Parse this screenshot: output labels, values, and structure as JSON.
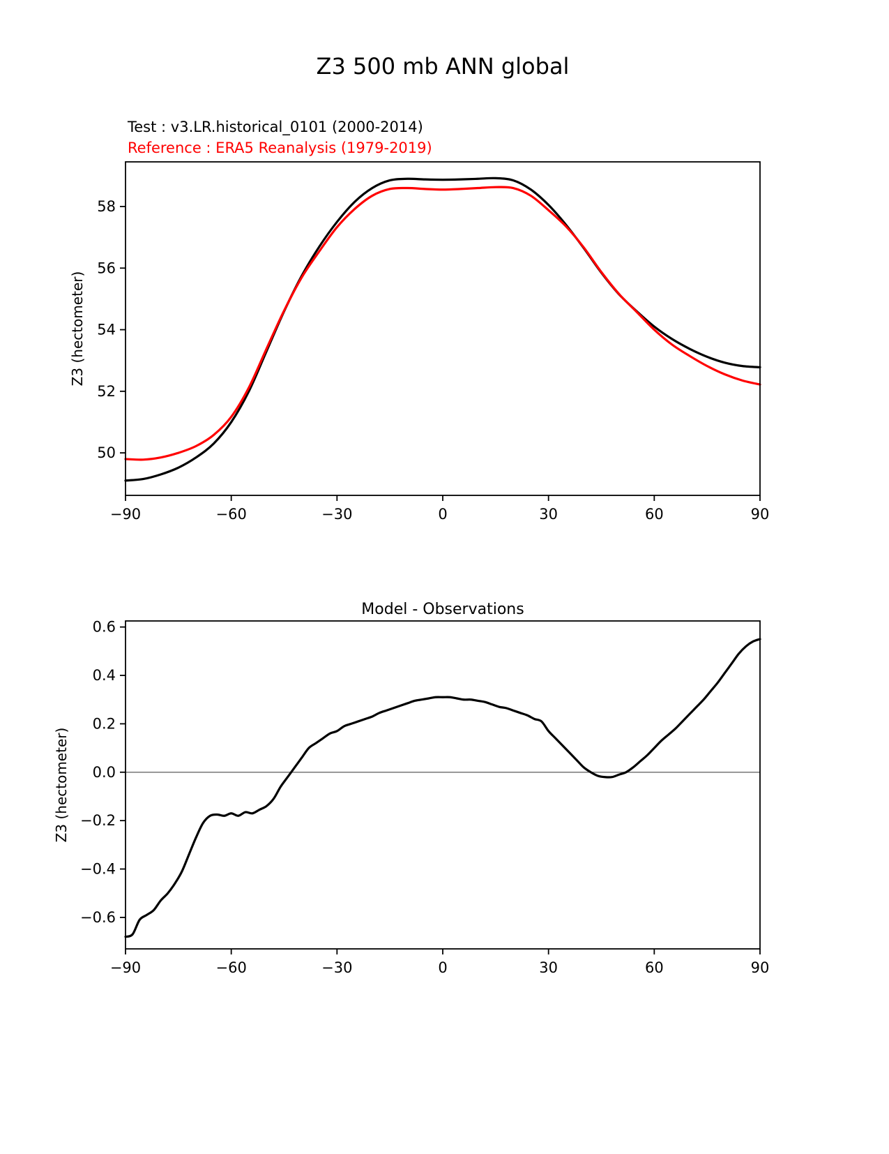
{
  "page": {
    "title": "Z3 500 mb ANN global"
  },
  "legend": {
    "test_label": "Test : v3.LR.historical_0101 (2000-2014)",
    "reference_label": "Reference : ERA5 Reanalysis (1979-2019)",
    "test_color": "#000000",
    "reference_color": "#ff0000"
  },
  "chart_data": [
    {
      "type": "line",
      "title": "Z3 500 mb ANN global",
      "xlabel": "",
      "ylabel": "Z3 (hectometer)",
      "xlim": [
        -90,
        90
      ],
      "ylim": [
        48.62,
        59.45
      ],
      "grid": false,
      "legend_position": "top-left-above-axes",
      "xticks": [
        {
          "v": -90,
          "label": "−90"
        },
        {
          "v": -60,
          "label": "−60"
        },
        {
          "v": -30,
          "label": "−30"
        },
        {
          "v": 0,
          "label": "0"
        },
        {
          "v": 30,
          "label": "30"
        },
        {
          "v": 60,
          "label": "60"
        },
        {
          "v": 90,
          "label": "90"
        }
      ],
      "yticks": [
        {
          "v": 50,
          "label": "50"
        },
        {
          "v": 52,
          "label": "52"
        },
        {
          "v": 54,
          "label": "54"
        },
        {
          "v": 56,
          "label": "56"
        },
        {
          "v": 58,
          "label": "58"
        }
      ],
      "x": [
        -90,
        -85,
        -80,
        -75,
        -70,
        -65,
        -60,
        -55,
        -50,
        -45,
        -40,
        -35,
        -30,
        -25,
        -20,
        -15,
        -10,
        -5,
        0,
        5,
        10,
        15,
        20,
        25,
        30,
        35,
        40,
        45,
        50,
        55,
        60,
        65,
        70,
        75,
        80,
        85,
        90
      ],
      "series": [
        {
          "name": "Test : v3.LR.historical_0101 (2000-2014)",
          "color": "#000000",
          "values": [
            49.1,
            49.15,
            49.3,
            49.52,
            49.85,
            50.3,
            51.0,
            52.0,
            53.3,
            54.6,
            55.75,
            56.7,
            57.5,
            58.15,
            58.6,
            58.85,
            58.9,
            58.88,
            58.87,
            58.88,
            58.9,
            58.92,
            58.85,
            58.55,
            58.05,
            57.4,
            56.65,
            55.85,
            55.15,
            54.6,
            54.1,
            53.7,
            53.38,
            53.12,
            52.93,
            52.82,
            52.78
          ]
        },
        {
          "name": "Reference : ERA5 Reanalysis (1979-2019)",
          "color": "#ff0000",
          "values": [
            49.8,
            49.78,
            49.85,
            50.0,
            50.22,
            50.58,
            51.17,
            52.12,
            53.38,
            54.62,
            55.7,
            56.55,
            57.33,
            57.92,
            58.35,
            58.57,
            58.6,
            58.57,
            58.55,
            58.57,
            58.6,
            58.63,
            58.6,
            58.35,
            57.88,
            57.35,
            56.67,
            55.87,
            55.16,
            54.58,
            54.0,
            53.52,
            53.15,
            52.82,
            52.55,
            52.35,
            52.22
          ]
        }
      ]
    },
    {
      "type": "line",
      "title": "Model - Observations",
      "xlabel": "",
      "ylabel": "Z3 (hectometer)",
      "xlim": [
        -90,
        90
      ],
      "ylim": [
        -0.73,
        0.625
      ],
      "grid": false,
      "zero_line": true,
      "zero_line_color": "#808080",
      "xticks": [
        {
          "v": -90,
          "label": "−90"
        },
        {
          "v": -60,
          "label": "−60"
        },
        {
          "v": -30,
          "label": "−30"
        },
        {
          "v": 0,
          "label": "0"
        },
        {
          "v": 30,
          "label": "30"
        },
        {
          "v": 60,
          "label": "60"
        },
        {
          "v": 90,
          "label": "90"
        }
      ],
      "yticks": [
        {
          "v": -0.6,
          "label": "−0.6"
        },
        {
          "v": -0.4,
          "label": "−0.4"
        },
        {
          "v": -0.2,
          "label": "−0.2"
        },
        {
          "v": 0.0,
          "label": "0.0"
        },
        {
          "v": 0.2,
          "label": "0.2"
        },
        {
          "v": 0.4,
          "label": "0.4"
        },
        {
          "v": 0.6,
          "label": "0.6"
        }
      ],
      "x": [
        -90,
        -88,
        -86,
        -84,
        -82,
        -80,
        -78,
        -76,
        -74,
        -72,
        -70,
        -68,
        -66,
        -64,
        -62,
        -60,
        -58,
        -56,
        -54,
        -52,
        -50,
        -48,
        -46,
        -44,
        -42,
        -40,
        -38,
        -36,
        -34,
        -32,
        -30,
        -28,
        -26,
        -24,
        -22,
        -20,
        -18,
        -16,
        -14,
        -12,
        -10,
        -8,
        -6,
        -4,
        -2,
        0,
        2,
        4,
        6,
        8,
        10,
        12,
        14,
        16,
        18,
        20,
        22,
        24,
        26,
        28,
        30,
        32,
        34,
        36,
        38,
        40,
        42,
        44,
        46,
        48,
        50,
        52,
        54,
        56,
        58,
        60,
        62,
        64,
        66,
        68,
        70,
        72,
        74,
        76,
        78,
        80,
        82,
        84,
        86,
        88,
        90
      ],
      "series": [
        {
          "name": "Model - Observations",
          "color": "#000000",
          "values": [
            -0.68,
            -0.67,
            -0.61,
            -0.59,
            -0.57,
            -0.53,
            -0.5,
            -0.46,
            -0.41,
            -0.34,
            -0.27,
            -0.21,
            -0.18,
            -0.175,
            -0.18,
            -0.17,
            -0.18,
            -0.165,
            -0.17,
            -0.155,
            -0.14,
            -0.11,
            -0.06,
            -0.02,
            0.02,
            0.06,
            0.1,
            0.12,
            0.14,
            0.16,
            0.17,
            0.19,
            0.2,
            0.21,
            0.22,
            0.23,
            0.245,
            0.255,
            0.265,
            0.275,
            0.285,
            0.295,
            0.3,
            0.305,
            0.31,
            0.31,
            0.31,
            0.305,
            0.3,
            0.3,
            0.295,
            0.29,
            0.28,
            0.27,
            0.265,
            0.255,
            0.245,
            0.235,
            0.22,
            0.21,
            0.17,
            0.14,
            0.11,
            0.08,
            0.05,
            0.02,
            0.0,
            -0.015,
            -0.02,
            -0.02,
            -0.01,
            0.0,
            0.02,
            0.045,
            0.07,
            0.1,
            0.13,
            0.155,
            0.18,
            0.21,
            0.24,
            0.27,
            0.3,
            0.335,
            0.37,
            0.41,
            0.45,
            0.49,
            0.52,
            0.54,
            0.55
          ]
        }
      ]
    }
  ]
}
